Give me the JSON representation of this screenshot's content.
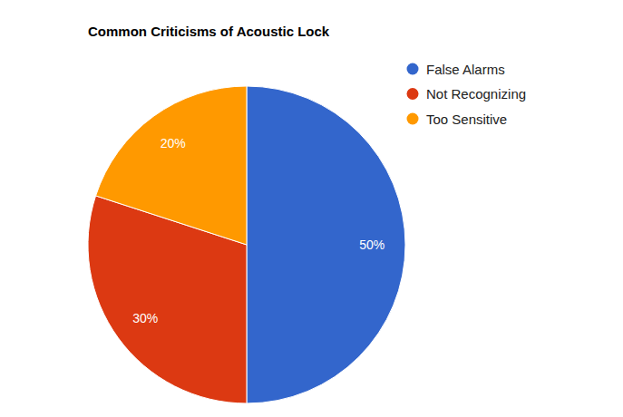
{
  "chart_data": {
    "type": "pie",
    "title": "Common Criticisms of Acoustic Lock",
    "categories": [
      "False Alarms",
      "Not Recognizing",
      "Too Sensitive"
    ],
    "values": [
      50,
      30,
      20
    ],
    "value_labels": [
      "50%",
      "30%",
      "20%"
    ],
    "colors": [
      "#3366cc",
      "#dc3912",
      "#ff9900"
    ],
    "data_labels": true,
    "legend": "right"
  }
}
